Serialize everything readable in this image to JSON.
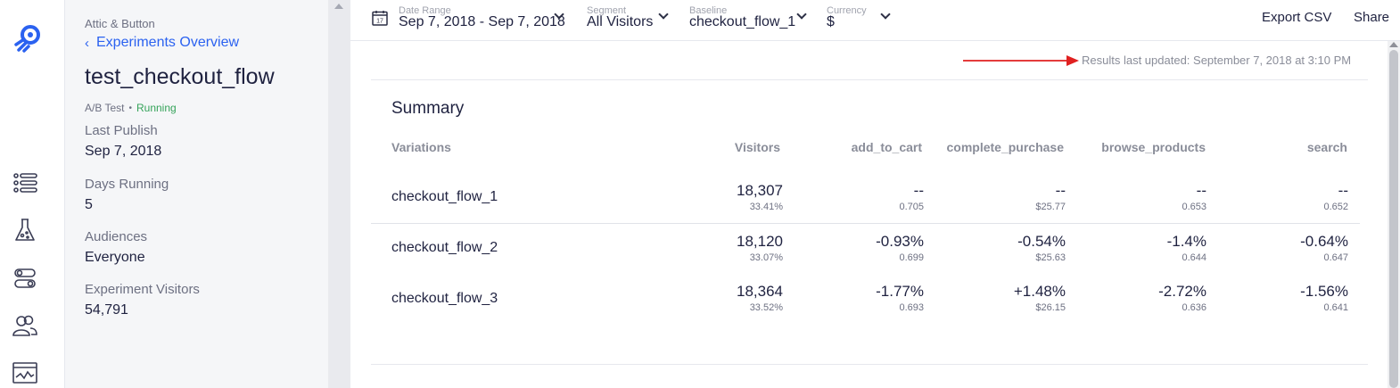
{
  "rail": {
    "items": [
      "list-icon",
      "flask-icon",
      "toggles-icon",
      "audiences-icon",
      "reports-icon"
    ]
  },
  "sidebar": {
    "org": "Attic & Button",
    "back_label": "Experiments Overview",
    "title": "test_checkout_flow",
    "type": "A/B Test",
    "status": "Running",
    "fields": [
      {
        "label": "Last Publish",
        "value": "Sep 7, 2018"
      },
      {
        "label": "Days Running",
        "value": "5"
      },
      {
        "label": "Audiences",
        "value": "Everyone"
      },
      {
        "label": "Experiment Visitors",
        "value": "54,791"
      }
    ]
  },
  "toolbar": {
    "date_range": {
      "label": "Date Range",
      "value": "Sep 7, 2018 - Sep 7, 2018",
      "icon_day": "17"
    },
    "segment": {
      "label": "Segment",
      "value": "All Visitors"
    },
    "baseline": {
      "label": "Baseline",
      "value": "checkout_flow_1"
    },
    "currency": {
      "label": "Currency",
      "value": "$"
    },
    "export_label": "Export CSV",
    "share_label": "Share"
  },
  "main": {
    "updated": "Results last updated: September 7, 2018 at 3:10 PM",
    "summary_title": "Summary",
    "columns": [
      "Variations",
      "Visitors",
      "add_to_cart",
      "complete_purchase",
      "browse_products",
      "search"
    ],
    "rows": [
      {
        "name": "checkout_flow_1",
        "visitors": "18,307",
        "visitors_pct": "33.41%",
        "metrics": [
          {
            "main": "--",
            "sub": "0.705"
          },
          {
            "main": "--",
            "sub": "$25.77"
          },
          {
            "main": "--",
            "sub": "0.653"
          },
          {
            "main": "--",
            "sub": "0.652"
          }
        ]
      },
      {
        "name": "checkout_flow_2",
        "visitors": "18,120",
        "visitors_pct": "33.07%",
        "metrics": [
          {
            "main": "-0.93%",
            "sub": "0.699"
          },
          {
            "main": "-0.54%",
            "sub": "$25.63"
          },
          {
            "main": "-1.4%",
            "sub": "0.644"
          },
          {
            "main": "-0.64%",
            "sub": "0.647"
          }
        ]
      },
      {
        "name": "checkout_flow_3",
        "visitors": "18,364",
        "visitors_pct": "33.52%",
        "metrics": [
          {
            "main": "-1.77%",
            "sub": "0.693"
          },
          {
            "main": "+1.48%",
            "sub": "$26.15"
          },
          {
            "main": "-2.72%",
            "sub": "0.636"
          },
          {
            "main": "-1.56%",
            "sub": "0.641"
          }
        ]
      }
    ]
  },
  "colors": {
    "accent": "#2b62f0",
    "running": "#35a35a",
    "annotation_arrow": "#e02020"
  }
}
